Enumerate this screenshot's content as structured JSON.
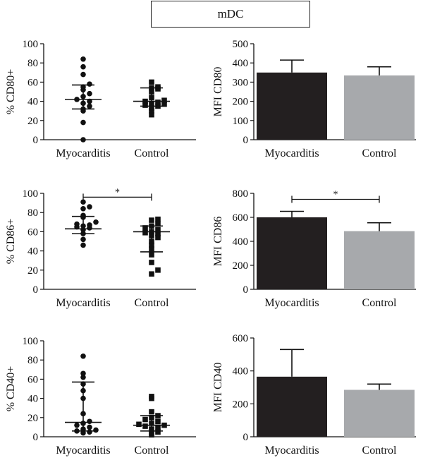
{
  "header": {
    "title": "mDC"
  },
  "chart_data": [
    {
      "id": "cd80-pct",
      "type": "scatter",
      "ylabel": "% CD80+",
      "ylim": [
        0,
        100
      ],
      "yticks": [
        0,
        20,
        40,
        60,
        80,
        100
      ],
      "categories": [
        "Myocarditis",
        "Control"
      ],
      "groups": [
        {
          "category": "Myocarditis",
          "marker": "circle",
          "points": [
            0,
            18,
            30,
            32,
            35,
            38,
            40,
            42,
            45,
            48,
            52,
            55,
            58,
            68,
            76,
            84
          ],
          "center": 42,
          "error": [
            32,
            57
          ]
        },
        {
          "category": "Control",
          "marker": "square",
          "points": [
            26,
            30,
            33,
            35,
            36,
            37,
            38,
            39,
            40,
            41,
            44,
            50,
            53,
            54,
            55,
            60
          ],
          "center": 40,
          "error": [
            35,
            54
          ]
        }
      ],
      "significance": null
    },
    {
      "id": "cd80-mfi",
      "type": "bar",
      "ylabel": "MFI CD80",
      "ylim": [
        0,
        500
      ],
      "yticks": [
        0,
        100,
        200,
        300,
        400,
        500
      ],
      "categories": [
        "Myocarditis",
        "Control"
      ],
      "values": [
        350,
        335
      ],
      "errors": [
        415,
        380
      ],
      "colors": [
        "#231f20",
        "#a7a9ac"
      ],
      "significance": null
    },
    {
      "id": "cd86-pct",
      "type": "scatter",
      "ylabel": "% CD86+",
      "ylim": [
        0,
        100
      ],
      "yticks": [
        0,
        20,
        40,
        60,
        80,
        100
      ],
      "categories": [
        "Myocarditis",
        "Control"
      ],
      "groups": [
        {
          "category": "Myocarditis",
          "marker": "circle",
          "points": [
            46,
            52,
            58,
            62,
            64,
            65,
            66,
            67,
            68,
            70,
            75,
            77,
            84,
            86,
            91
          ],
          "center": 63,
          "error": [
            58,
            76
          ]
        },
        {
          "category": "Control",
          "marker": "square",
          "points": [
            16,
            20,
            28,
            36,
            42,
            46,
            50,
            54,
            56,
            58,
            59,
            60,
            62,
            64,
            66,
            68,
            72,
            73
          ],
          "center": 60,
          "error": [
            39,
            66
          ]
        }
      ],
      "significance": {
        "label": "*",
        "y": 96
      }
    },
    {
      "id": "cd86-mfi",
      "type": "bar",
      "ylabel": "MFI CD86",
      "ylim": [
        0,
        800
      ],
      "yticks": [
        0,
        200,
        400,
        600,
        800
      ],
      "categories": [
        "Myocarditis",
        "Control"
      ],
      "values": [
        600,
        485
      ],
      "errors": [
        650,
        555
      ],
      "colors": [
        "#231f20",
        "#a7a9ac"
      ],
      "significance": {
        "label": "*",
        "y": 750
      }
    },
    {
      "id": "cd40-pct",
      "type": "scatter",
      "ylabel": "% CD40+",
      "ylim": [
        0,
        100
      ],
      "yticks": [
        0,
        20,
        40,
        60,
        80,
        100
      ],
      "categories": [
        "Myocarditis",
        "Control"
      ],
      "groups": [
        {
          "category": "Myocarditis",
          "marker": "circle",
          "points": [
            4,
            5,
            6,
            7,
            8,
            10,
            12,
            14,
            16,
            24,
            40,
            48,
            55,
            62,
            66,
            84
          ],
          "center": 15,
          "error": [
            6,
            57
          ]
        },
        {
          "category": "Control",
          "marker": "square",
          "points": [
            2,
            4,
            5,
            8,
            10,
            11,
            12,
            13,
            14,
            16,
            18,
            20,
            22,
            26,
            40,
            42
          ],
          "center": 12,
          "error": [
            6,
            22
          ]
        }
      ],
      "significance": null
    },
    {
      "id": "cd40-mfi",
      "type": "bar",
      "ylabel": "MFI CD40",
      "ylim": [
        0,
        600
      ],
      "yticks": [
        0,
        200,
        400,
        600
      ],
      "categories": [
        "Myocarditis",
        "Control"
      ],
      "values": [
        365,
        285
      ],
      "errors": [
        530,
        320
      ],
      "colors": [
        "#231f20",
        "#a7a9ac"
      ],
      "significance": null
    }
  ]
}
